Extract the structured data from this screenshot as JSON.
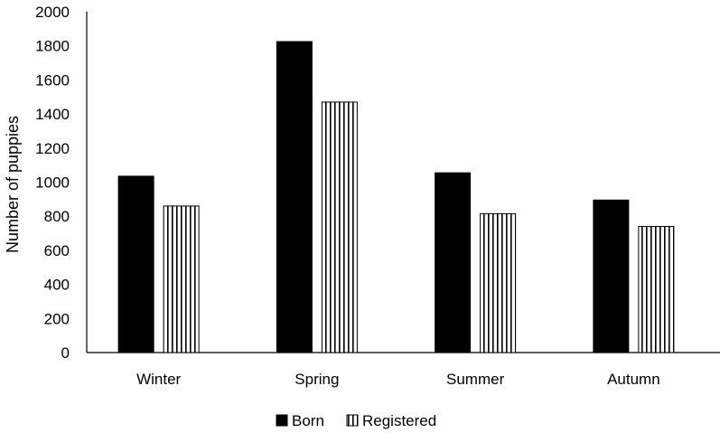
{
  "chart_data": {
    "type": "bar",
    "title": "",
    "xlabel": "",
    "ylabel": "Number of puppies",
    "ylim": [
      0,
      2000
    ],
    "y_ticks": [
      0,
      200,
      400,
      600,
      800,
      1000,
      1200,
      1400,
      1600,
      1800,
      2000
    ],
    "categories": [
      "Winter",
      "Spring",
      "Summer",
      "Autumn"
    ],
    "series": [
      {
        "name": "Born",
        "values": [
          1035,
          1825,
          1055,
          895
        ],
        "style": "solid",
        "color": "#000000"
      },
      {
        "name": "Registered",
        "values": [
          860,
          1470,
          815,
          740
        ],
        "style": "vertical-stripes",
        "color": "#ffffff"
      }
    ],
    "grid": false,
    "legend": "bottom-center"
  }
}
